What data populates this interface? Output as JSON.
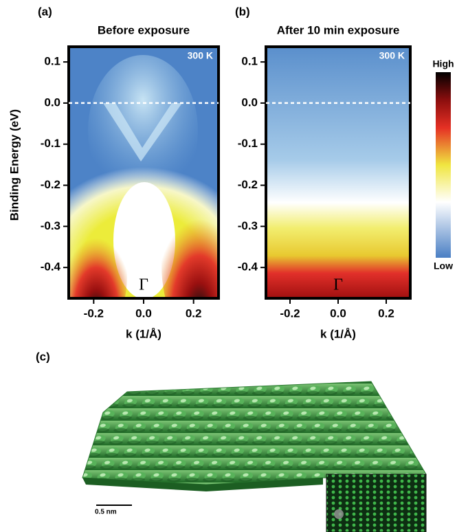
{
  "panels": [
    {
      "label": "(a)",
      "title": "Before exposure",
      "temperature": "300 K",
      "gamma": "Γ",
      "ylabel": "Binding Energy (eV)",
      "xlabel": "k (1/Å)",
      "xlim": [
        -0.3,
        0.3
      ],
      "xticks": [
        -0.2,
        {
          "value": 0,
          "label": "0.0"
        },
        0.2
      ],
      "ylim": [
        -0.475,
        0.137
      ],
      "yticks": [
        0.1,
        {
          "value": 0,
          "label": "0.0"
        },
        -0.1,
        -0.2,
        -0.3,
        -0.4
      ]
    },
    {
      "label": "(b)",
      "title": "After 10 min exposure",
      "temperature": "300 K",
      "gamma": "Γ",
      "xlabel": "k (1/Å)",
      "xlim": [
        -0.3,
        0.3
      ],
      "xticks": [
        -0.2,
        {
          "value": 0,
          "label": "0.0"
        },
        0.2
      ],
      "ylim": [
        -0.475,
        0.137
      ],
      "yticks": [
        0.1,
        {
          "value": 0,
          "label": "0.0"
        },
        -0.1,
        -0.2,
        -0.3,
        -0.4
      ]
    }
  ],
  "colorbar": {
    "high": "High",
    "low": "Low"
  },
  "stm": {
    "label": "(c)",
    "scale_bar": "0.5 nm"
  }
}
